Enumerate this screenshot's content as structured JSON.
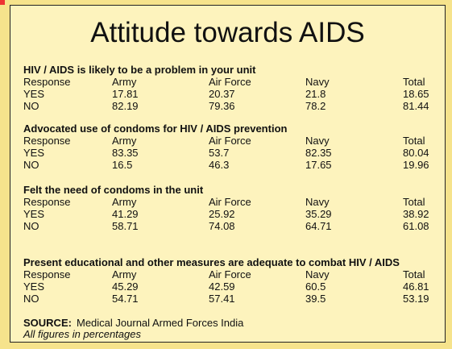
{
  "title": "Attitude towards AIDS",
  "sections": [
    {
      "heading": "HIV / AIDS is likely to be a problem in your unit",
      "header": [
        "Response",
        "Army",
        "Air Force",
        "Navy",
        "Total"
      ],
      "rows": [
        [
          "YES",
          17.81,
          20.37,
          21.8,
          18.65
        ],
        [
          "NO",
          82.19,
          79.36,
          78.2,
          81.44
        ]
      ]
    },
    {
      "heading": "Advocated use of condoms for HIV / AIDS prevention",
      "header": [
        "Response",
        "Army",
        "Air Force",
        "Navy",
        "Total"
      ],
      "rows": [
        [
          "YES",
          83.35,
          53.7,
          82.35,
          80.04
        ],
        [
          "NO",
          16.5,
          46.3,
          17.65,
          19.96
        ]
      ]
    },
    {
      "heading": "Felt the need of condoms in the unit",
      "header": [
        "Response",
        "Army",
        "Air Force",
        "Navy",
        "Total"
      ],
      "rows": [
        [
          "YES",
          41.29,
          25.92,
          35.29,
          38.92
        ],
        [
          "NO",
          58.71,
          74.08,
          64.71,
          61.08
        ]
      ]
    },
    {
      "heading": "Present educational and other measures are adequate to combat HIV / AIDS",
      "header": [
        "Response",
        "Army",
        "Air Force",
        "Navy",
        "Total"
      ],
      "rows": [
        [
          "YES",
          45.29,
          42.59,
          60.5,
          46.81
        ],
        [
          "NO",
          54.71,
          57.41,
          39.5,
          53.19
        ]
      ]
    }
  ],
  "source": {
    "label": "SOURCE:",
    "text": "Medical Journal Armed Forces India"
  },
  "note": "All figures in percentages"
}
